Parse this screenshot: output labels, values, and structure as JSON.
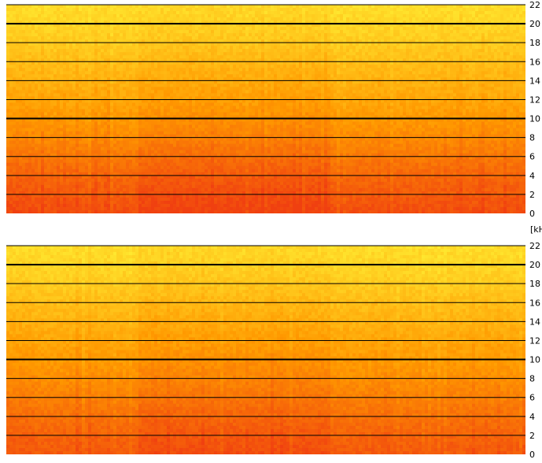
{
  "colors": {
    "background": "#ffffff",
    "gridline": "#000000",
    "heat_low": "#ffee33",
    "heat_mid": "#ff9900",
    "heat_high": "#f04010"
  },
  "unit_label": "[kH",
  "chart_data": [
    {
      "type": "heatmap",
      "name": "",
      "ylim": [
        0,
        22
      ],
      "yticks": [
        "0",
        "2",
        "4",
        "6",
        "8",
        "10",
        "12",
        "14",
        "16",
        "18",
        "20",
        "22"
      ],
      "grid": true,
      "bold_gridlines": [
        10,
        20
      ],
      "intensity_profile": {
        "description_free": true,
        "frequency_bands": [
          0,
          2,
          4,
          6,
          8,
          10,
          12,
          14,
          16,
          18,
          20,
          22
        ],
        "mean_intensity": [
          0.92,
          0.85,
          0.78,
          0.68,
          0.58,
          0.5,
          0.42,
          0.35,
          0.28,
          0.2,
          0.14,
          0.1
        ]
      }
    },
    {
      "type": "heatmap",
      "name": "",
      "ylim": [
        0,
        22
      ],
      "yticks": [
        "0",
        "2",
        "4",
        "6",
        "8",
        "10",
        "12",
        "14",
        "16",
        "18",
        "20",
        "22"
      ],
      "grid": true,
      "bold_gridlines": [
        10,
        20
      ],
      "intensity_profile": {
        "description_free": true,
        "frequency_bands": [
          0,
          2,
          4,
          6,
          8,
          10,
          12,
          14,
          16,
          18,
          20,
          22
        ],
        "mean_intensity": [
          0.85,
          0.8,
          0.72,
          0.64,
          0.56,
          0.49,
          0.42,
          0.35,
          0.28,
          0.2,
          0.14,
          0.1
        ]
      }
    }
  ]
}
